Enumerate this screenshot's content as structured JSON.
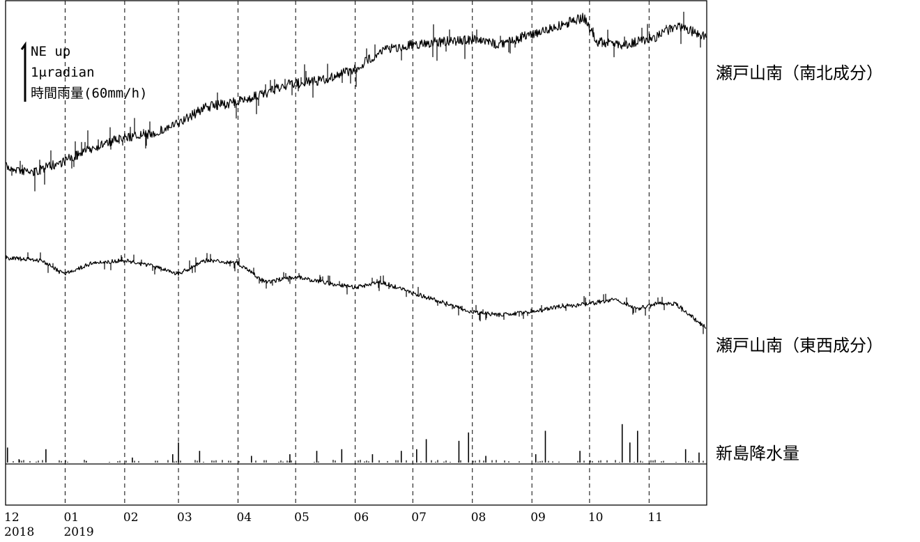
{
  "chart_data": {
    "type": "line",
    "x_axis": {
      "tick_labels": [
        {
          "month": "12",
          "year": "2018"
        },
        {
          "month": "01",
          "year": "2019"
        },
        {
          "month": "02",
          "year": ""
        },
        {
          "month": "03",
          "year": ""
        },
        {
          "month": "04",
          "year": ""
        },
        {
          "month": "05",
          "year": ""
        },
        {
          "month": "06",
          "year": ""
        },
        {
          "month": "07",
          "year": ""
        },
        {
          "month": "08",
          "year": ""
        },
        {
          "month": "09",
          "year": ""
        },
        {
          "month": "10",
          "year": ""
        },
        {
          "month": "11",
          "year": ""
        }
      ],
      "start": "2018-12-01",
      "end": "2019-12-01",
      "grid": "dashed vertical lines at month starts"
    },
    "legend": {
      "line1": "NE up",
      "line2": "1μradian",
      "line3": "時間雨量(60mm/h)",
      "placement": "top-left"
    },
    "series": [
      {
        "name": "瀬戸山南（南北成分）",
        "unit": "μradian",
        "points": [
          [
            "2018-12-01",
            -2.15
          ],
          [
            "2018-12-15",
            -2.25
          ],
          [
            "2018-12-31",
            -2.05
          ],
          [
            "2019-01-15",
            -1.8
          ],
          [
            "2019-02-01",
            -1.6
          ],
          [
            "2019-02-15",
            -1.55
          ],
          [
            "2019-03-01",
            -1.35
          ],
          [
            "2019-03-15",
            -1.05
          ],
          [
            "2019-04-01",
            -0.95
          ],
          [
            "2019-04-15",
            -0.8
          ],
          [
            "2019-04-25",
            -0.65
          ],
          [
            "2019-05-15",
            -0.55
          ],
          [
            "2019-06-01",
            -0.35
          ],
          [
            "2019-06-15",
            0.0
          ],
          [
            "2019-07-01",
            0.1
          ],
          [
            "2019-07-15",
            0.15
          ],
          [
            "2019-08-01",
            0.2
          ],
          [
            "2019-08-15",
            0.1
          ],
          [
            "2019-09-01",
            0.3
          ],
          [
            "2019-09-15",
            0.45
          ],
          [
            "2019-09-28",
            0.6
          ],
          [
            "2019-10-05",
            0.15
          ],
          [
            "2019-10-20",
            0.1
          ],
          [
            "2019-11-05",
            0.25
          ],
          [
            "2019-11-15",
            0.45
          ],
          [
            "2019-12-01",
            0.25
          ]
        ]
      },
      {
        "name": "瀬戸山南（東西成分）",
        "unit": "μradian",
        "points": [
          [
            "2018-12-01",
            0.0
          ],
          [
            "2018-12-20",
            -0.05
          ],
          [
            "2018-12-31",
            -0.3
          ],
          [
            "2019-01-15",
            -0.1
          ],
          [
            "2019-02-01",
            -0.05
          ],
          [
            "2019-02-15",
            -0.15
          ],
          [
            "2019-03-01",
            -0.3
          ],
          [
            "2019-03-15",
            -0.05
          ],
          [
            "2019-04-01",
            -0.1
          ],
          [
            "2019-04-15",
            -0.45
          ],
          [
            "2019-05-01",
            -0.35
          ],
          [
            "2019-05-15",
            -0.45
          ],
          [
            "2019-06-01",
            -0.55
          ],
          [
            "2019-06-15",
            -0.45
          ],
          [
            "2019-07-01",
            -0.65
          ],
          [
            "2019-07-15",
            -0.8
          ],
          [
            "2019-08-01",
            -1.0
          ],
          [
            "2019-08-15",
            -1.05
          ],
          [
            "2019-09-01",
            -1.0
          ],
          [
            "2019-09-15",
            -0.9
          ],
          [
            "2019-10-01",
            -0.85
          ],
          [
            "2019-10-15",
            -0.75
          ],
          [
            "2019-10-25",
            -0.95
          ],
          [
            "2019-11-05",
            -0.85
          ],
          [
            "2019-11-15",
            -0.85
          ],
          [
            "2019-12-01",
            -1.3
          ]
        ]
      },
      {
        "name": "新島降水量",
        "type": "bar",
        "unit": "mm/h",
        "events": [
          [
            "2018-12-02",
            9
          ],
          [
            "2018-12-08",
            2
          ],
          [
            "2018-12-22",
            8
          ],
          [
            "2019-01-12",
            1
          ],
          [
            "2019-02-05",
            3
          ],
          [
            "2019-02-26",
            5
          ],
          [
            "2019-03-01",
            12
          ],
          [
            "2019-03-12",
            7
          ],
          [
            "2019-04-08",
            4
          ],
          [
            "2019-04-28",
            5
          ],
          [
            "2019-05-12",
            7
          ],
          [
            "2019-05-25",
            8
          ],
          [
            "2019-06-10",
            5
          ],
          [
            "2019-06-25",
            7
          ],
          [
            "2019-07-03",
            8
          ],
          [
            "2019-07-08",
            14
          ],
          [
            "2019-07-25",
            13
          ],
          [
            "2019-07-30",
            18
          ],
          [
            "2019-08-08",
            4
          ],
          [
            "2019-09-03",
            5
          ],
          [
            "2019-09-08",
            19
          ],
          [
            "2019-09-26",
            7
          ],
          [
            "2019-10-18",
            23
          ],
          [
            "2019-10-22",
            12
          ],
          [
            "2019-10-26",
            19
          ],
          [
            "2019-11-20",
            8
          ],
          [
            "2019-11-27",
            6
          ]
        ]
      }
    ]
  }
}
